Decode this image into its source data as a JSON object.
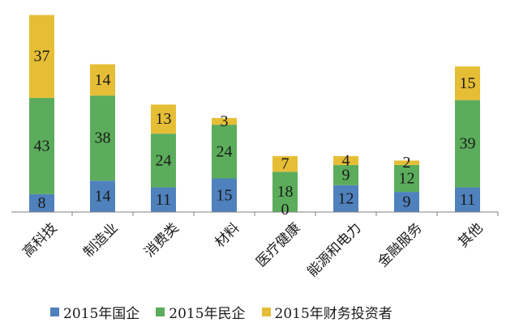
{
  "chart_data": {
    "type": "bar",
    "stacked": true,
    "categories": [
      "高科技",
      "制造业",
      "消费类",
      "材料",
      "医疗健康",
      "能源和电力",
      "金融服务",
      "其他"
    ],
    "series": [
      {
        "name": "2015年国企",
        "color": "#4F81BD",
        "values": [
          8,
          14,
          11,
          15,
          0,
          12,
          9,
          11
        ]
      },
      {
        "name": "2015年民企",
        "color": "#5BAD5B",
        "values": [
          43,
          38,
          24,
          24,
          18,
          9,
          12,
          39
        ]
      },
      {
        "name": "2015年财务投资者",
        "color": "#E6BE36",
        "values": [
          37,
          14,
          13,
          3,
          7,
          4,
          2,
          15
        ]
      }
    ],
    "ylim": [
      0,
      90
    ],
    "legend": "bottom",
    "grid": false
  }
}
